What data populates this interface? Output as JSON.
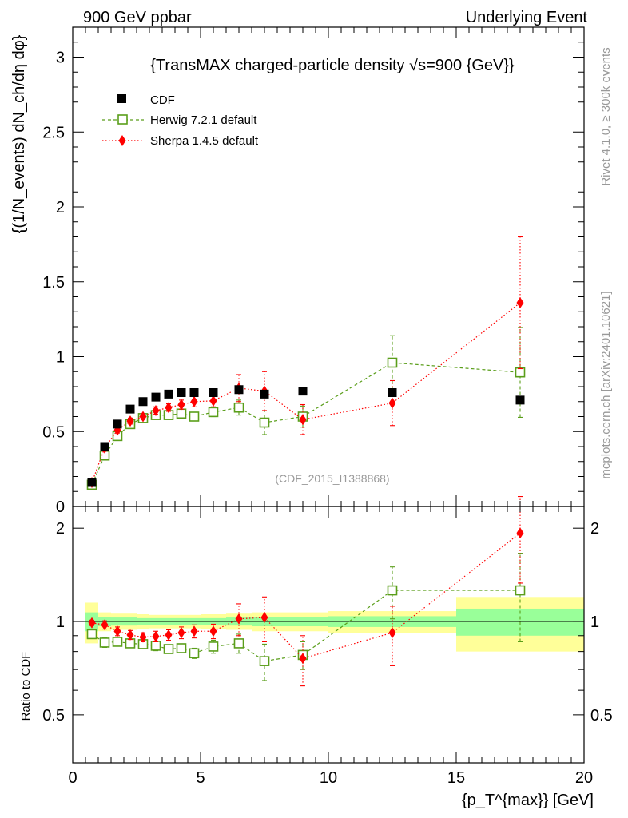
{
  "header": {
    "left": "900 GeV ppbar",
    "right": "Underlying Event"
  },
  "side_labels": {
    "rivet": "Rivet 4.1.0, ≥ 300k events",
    "mcplots": "mcplots.cern.ch [arXiv:2401.10621]"
  },
  "chart_data": {
    "type": "scatter",
    "title": "{TransMAX charged-particle density √s=900 {GeV}}",
    "watermark": "(CDF_2015_I1388868)",
    "ylabel_main": "{(1/N_events) dN_ch/dη dφ}",
    "ylabel_ratio": "Ratio to CDF",
    "xlabel": "{p_T^{max}} [GeV]",
    "xlim": [
      0,
      20
    ],
    "ylim_main": [
      0,
      3.2
    ],
    "ylim_ratio": [
      0.35,
      2.35
    ],
    "x_ticks": [
      "0",
      "5",
      "10",
      "15",
      "20"
    ],
    "y_ticks_main": [
      "0",
      "0.5",
      "1",
      "1.5",
      "2",
      "2.5",
      "3"
    ],
    "y_ticks_ratio": [
      "0.5",
      "1",
      "2"
    ],
    "legend": [
      {
        "name": "CDF",
        "marker": "square-filled",
        "color": "#000000"
      },
      {
        "name": "Herwig 7.2.1 default",
        "marker": "square-open",
        "color": "#5a9e1a"
      },
      {
        "name": "Sherpa 1.4.5 default",
        "marker": "diamond",
        "color": "#ff0000"
      }
    ],
    "data_series": {
      "name": "CDF",
      "x": [
        0.75,
        1.25,
        1.75,
        2.25,
        2.75,
        3.25,
        3.75,
        4.25,
        4.75,
        5.5,
        6.5,
        7.5,
        9.0,
        12.5,
        17.5
      ],
      "y": [
        0.16,
        0.4,
        0.55,
        0.65,
        0.7,
        0.73,
        0.75,
        0.76,
        0.76,
        0.76,
        0.78,
        0.75,
        0.77,
        0.76,
        0.71
      ],
      "band_edges": [
        0.5,
        1.0,
        1.5,
        2.0,
        2.5,
        3.0,
        3.5,
        4.0,
        4.5,
        5.0,
        6.0,
        7.0,
        8.0,
        10.0,
        15.0,
        20.0
      ],
      "band_stat": [
        0.07,
        0.035,
        0.03,
        0.03,
        0.025,
        0.025,
        0.025,
        0.025,
        0.025,
        0.025,
        0.03,
        0.035,
        0.035,
        0.04,
        0.1
      ],
      "band_total": [
        0.15,
        0.07,
        0.06,
        0.06,
        0.055,
        0.05,
        0.05,
        0.05,
        0.05,
        0.055,
        0.06,
        0.07,
        0.07,
        0.08,
        0.2
      ]
    },
    "mc_series": [
      {
        "name": "Herwig 7.2.1 default",
        "x": [
          0.75,
          1.25,
          1.75,
          2.25,
          2.75,
          3.25,
          3.75,
          4.25,
          4.75,
          5.5,
          6.5,
          7.5,
          9.0,
          12.5,
          17.5
        ],
        "y": [
          0.145,
          0.34,
          0.47,
          0.55,
          0.59,
          0.61,
          0.61,
          0.62,
          0.6,
          0.63,
          0.66,
          0.56,
          0.6,
          0.96,
          0.895
        ],
        "err": [
          0.01,
          0.02,
          0.02,
          0.02,
          0.02,
          0.025,
          0.02,
          0.02,
          0.025,
          0.03,
          0.05,
          0.08,
          0.07,
          0.18,
          0.3
        ],
        "ratio": [
          0.91,
          0.855,
          0.86,
          0.85,
          0.845,
          0.835,
          0.815,
          0.82,
          0.79,
          0.83,
          0.85,
          0.745,
          0.78,
          1.26,
          1.26
        ],
        "ratio_err": [
          0.02,
          0.03,
          0.025,
          0.025,
          0.025,
          0.03,
          0.025,
          0.025,
          0.03,
          0.04,
          0.06,
          0.1,
          0.08,
          0.24,
          0.4
        ]
      },
      {
        "name": "Sherpa 1.4.5 default",
        "x": [
          0.75,
          1.25,
          1.75,
          2.25,
          2.75,
          3.25,
          3.75,
          4.25,
          4.75,
          5.5,
          6.5,
          7.5,
          9.0,
          12.5,
          17.5
        ],
        "y": [
          0.16,
          0.39,
          0.51,
          0.57,
          0.6,
          0.64,
          0.66,
          0.68,
          0.7,
          0.705,
          0.79,
          0.77,
          0.58,
          0.69,
          1.36
        ],
        "err": [
          0.01,
          0.02,
          0.02,
          0.02,
          0.02,
          0.025,
          0.025,
          0.03,
          0.035,
          0.04,
          0.09,
          0.13,
          0.1,
          0.15,
          0.44
        ],
        "ratio": [
          0.99,
          0.975,
          0.93,
          0.905,
          0.89,
          0.895,
          0.905,
          0.92,
          0.93,
          0.93,
          1.02,
          1.03,
          0.76,
          0.92,
          1.93
        ],
        "ratio_err": [
          0.02,
          0.03,
          0.03,
          0.03,
          0.03,
          0.035,
          0.035,
          0.04,
          0.045,
          0.05,
          0.12,
          0.17,
          0.14,
          0.2,
          0.6
        ]
      }
    ]
  }
}
